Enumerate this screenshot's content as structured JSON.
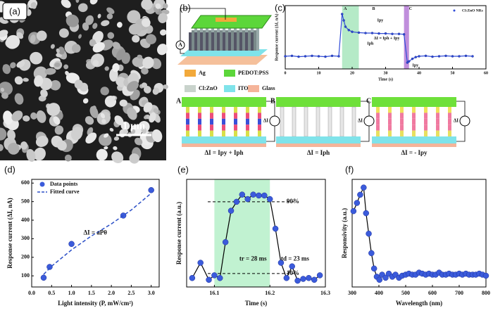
{
  "figure": {
    "panel_labels": [
      "(a)",
      "(b)",
      "(c)",
      "(d)",
      "(e)",
      "(f)"
    ],
    "scale_bar": "1 μm",
    "schematic_electrode": "A",
    "schematic_legend": [
      "Ag",
      "PEDOT:PSS",
      "Cl:ZnO",
      "ITO",
      "Glass"
    ],
    "diagram_labels": [
      "A",
      "B",
      "C"
    ],
    "diagram_current": "ΔI",
    "diagram_captions": [
      "ΔI = Ipy + Iph",
      "ΔI = Iph",
      "ΔI = - Ipy"
    ]
  },
  "chart_data": [
    {
      "type": "line",
      "x_label": "Time (s)",
      "y_label": "Response current (ΔI, nA)",
      "xlim": [
        0,
        60
      ],
      "xticks": [
        0,
        10,
        20,
        30,
        40,
        50,
        60
      ],
      "ylim": [
        -0.3,
        1.2
      ],
      "regions": [
        {
          "x": [
            17,
            22
          ],
          "color": "#a8e6bd"
        },
        {
          "x": [
            35.5,
            37
          ],
          "color": "#b57ad6"
        }
      ],
      "legend": "upper right",
      "annotations": [
        "A",
        "B",
        "C",
        "Ipy",
        "Iph",
        "ΔI = Iph + Ipy",
        "Ipy"
      ],
      "series": [
        {
          "name": "Cl:ZnO NRs",
          "color": "#2f4bd8",
          "line_color": "#2f4bd8",
          "x": [
            0,
            2,
            4,
            6,
            8,
            10,
            12,
            14,
            16,
            17,
            17.5,
            18,
            19,
            20,
            22,
            24,
            26,
            28,
            30,
            32,
            34,
            35.5,
            36.5,
            37,
            38,
            39,
            40,
            42,
            44,
            46,
            48,
            50,
            52,
            54,
            56
          ],
          "values": [
            0,
            0.01,
            -0.01,
            0,
            0.01,
            0,
            -0.01,
            0.01,
            0,
            1.0,
            0.85,
            0.7,
            0.62,
            0.58,
            0.56,
            0.55,
            0.55,
            0.54,
            0.54,
            0.53,
            0.53,
            0.52,
            -0.15,
            -0.12,
            -0.06,
            -0.02,
            0,
            0.01,
            -0.01,
            0,
            0.01,
            0,
            0,
            0.01,
            0
          ]
        }
      ]
    },
    {
      "type": "scatter",
      "x_label": "Light intensity (P, mW/cm²)",
      "y_label": "Response current (ΔI, nA)",
      "xlim": [
        0,
        3.2
      ],
      "xticks": [
        {
          "value": 0,
          "label": "0.0"
        },
        0.5,
        {
          "value": 1,
          "label": "1.0"
        },
        1.5,
        {
          "value": 2,
          "label": "2.0"
        },
        2.5,
        {
          "value": 3,
          "label": "3.0"
        }
      ],
      "ylim": [
        40,
        620
      ],
      "yticks": [
        100,
        200,
        300,
        400,
        500,
        600
      ],
      "legend": "upper left",
      "annotations": [
        "ΔI = aPθ"
      ],
      "series": [
        {
          "name": "Data points",
          "kind": "points",
          "color": "#3b5bdb",
          "x": [
            0.3,
            0.45,
            1.0,
            2.3,
            3.0
          ],
          "values": [
            90,
            148,
            272,
            425,
            562
          ]
        },
        {
          "name": "Fitted curve",
          "kind": "line",
          "dash": true,
          "color": "#2b4fc7",
          "x": [
            0.3,
            0.5,
            1,
            1.5,
            2,
            2.5,
            3
          ],
          "values": [
            108,
            152,
            240,
            315,
            380,
            455,
            545
          ]
        }
      ]
    },
    {
      "type": "line",
      "x_label": "Time (s)",
      "y_label": "Response current (a.u.)",
      "xlim": [
        16.05,
        16.3
      ],
      "xticks": [
        16.1,
        16.2,
        16.3
      ],
      "ylim": [
        -0.05,
        1.15
      ],
      "regions": [
        {
          "x": [
            16.1,
            16.2
          ],
          "color": "#b6f0c9"
        }
      ],
      "thresholds": [
        0.9,
        0.1
      ],
      "annotations": [
        "90%",
        "10%",
        "tr = 28 ms",
        "td = 23 ms"
      ],
      "series": [
        {
          "color": "#3b5bdb",
          "line_color": "#000000",
          "x": [
            16.06,
            16.075,
            16.09,
            16.1,
            16.11,
            16.12,
            16.13,
            16.14,
            16.15,
            16.16,
            16.17,
            16.18,
            16.19,
            16.2,
            16.21,
            16.22,
            16.23,
            16.24,
            16.25,
            16.26,
            16.27,
            16.28,
            16.29
          ],
          "values": [
            0.05,
            0.22,
            0.03,
            0.08,
            0.05,
            0.45,
            0.8,
            0.9,
            0.98,
            0.93,
            0.98,
            0.97,
            0.97,
            0.93,
            0.6,
            0.22,
            0.05,
            0.18,
            0.02,
            0.04,
            0.05,
            0.03,
            0.08
          ]
        }
      ]
    },
    {
      "type": "line",
      "x_label": "Wavelength (nm)",
      "y_label": "Responsivity (a.u.)",
      "xlim": [
        300,
        800
      ],
      "xticks": [
        300,
        400,
        500,
        600,
        700,
        800
      ],
      "ylim": [
        0,
        1.05
      ],
      "series": [
        {
          "color": "#3b5bdb",
          "line_color": "#000000",
          "x": [
            305,
            318,
            330,
            343,
            352,
            362,
            372,
            382,
            392,
            402,
            412,
            425,
            437,
            450,
            462,
            475,
            487,
            500,
            512,
            525,
            537,
            550,
            562,
            575,
            587,
            600,
            612,
            625,
            637,
            650,
            662,
            675,
            687,
            700,
            712,
            725,
            737,
            750,
            762,
            775,
            787,
            800
          ],
          "values": [
            0.74,
            0.82,
            0.9,
            0.97,
            0.72,
            0.52,
            0.33,
            0.18,
            0.1,
            0.07,
            0.12,
            0.09,
            0.13,
            0.1,
            0.12,
            0.09,
            0.11,
            0.12,
            0.13,
            0.12,
            0.12,
            0.14,
            0.13,
            0.12,
            0.13,
            0.12,
            0.12,
            0.14,
            0.12,
            0.12,
            0.13,
            0.12,
            0.12,
            0.13,
            0.12,
            0.13,
            0.12,
            0.12,
            0.12,
            0.13,
            0.12,
            0.11
          ]
        }
      ]
    }
  ]
}
